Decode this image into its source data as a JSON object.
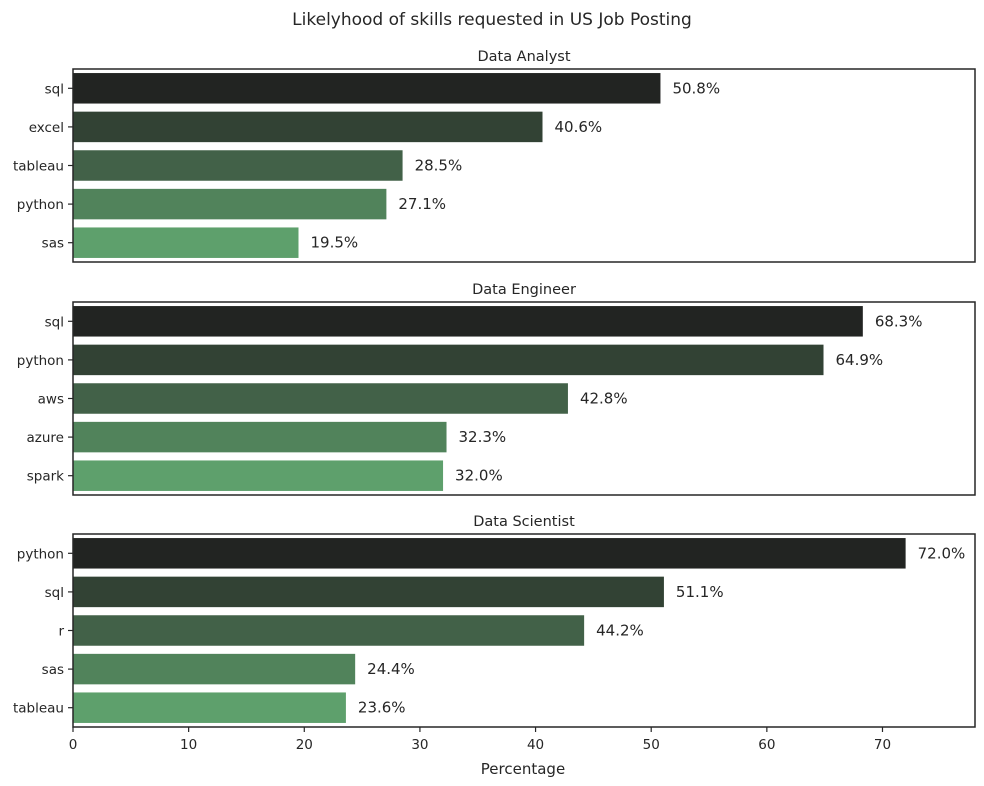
{
  "chart_data": {
    "type": "bar",
    "orientation": "horizontal",
    "title": "Likelyhood of skills requested in US Job Posting",
    "xlabel": "Percentage",
    "xlim": [
      0,
      78
    ],
    "xticks": [
      0,
      10,
      20,
      30,
      40,
      50,
      60,
      70
    ],
    "grid": false,
    "label_suffix": "%",
    "palette": [
      "#222422",
      "#324234",
      "#426148",
      "#51835b",
      "#5ea06c"
    ],
    "panels": [
      {
        "title": "Data Analyst",
        "categories": [
          "sql",
          "excel",
          "tableau",
          "python",
          "sas"
        ],
        "values": [
          50.8,
          40.6,
          28.5,
          27.1,
          19.5
        ]
      },
      {
        "title": "Data Engineer",
        "categories": [
          "sql",
          "python",
          "aws",
          "azure",
          "spark"
        ],
        "values": [
          68.3,
          64.9,
          42.8,
          32.3,
          32.0
        ]
      },
      {
        "title": "Data Scientist",
        "categories": [
          "python",
          "sql",
          "r",
          "sas",
          "tableau"
        ],
        "values": [
          72.0,
          51.1,
          44.2,
          24.4,
          23.6
        ]
      }
    ]
  }
}
